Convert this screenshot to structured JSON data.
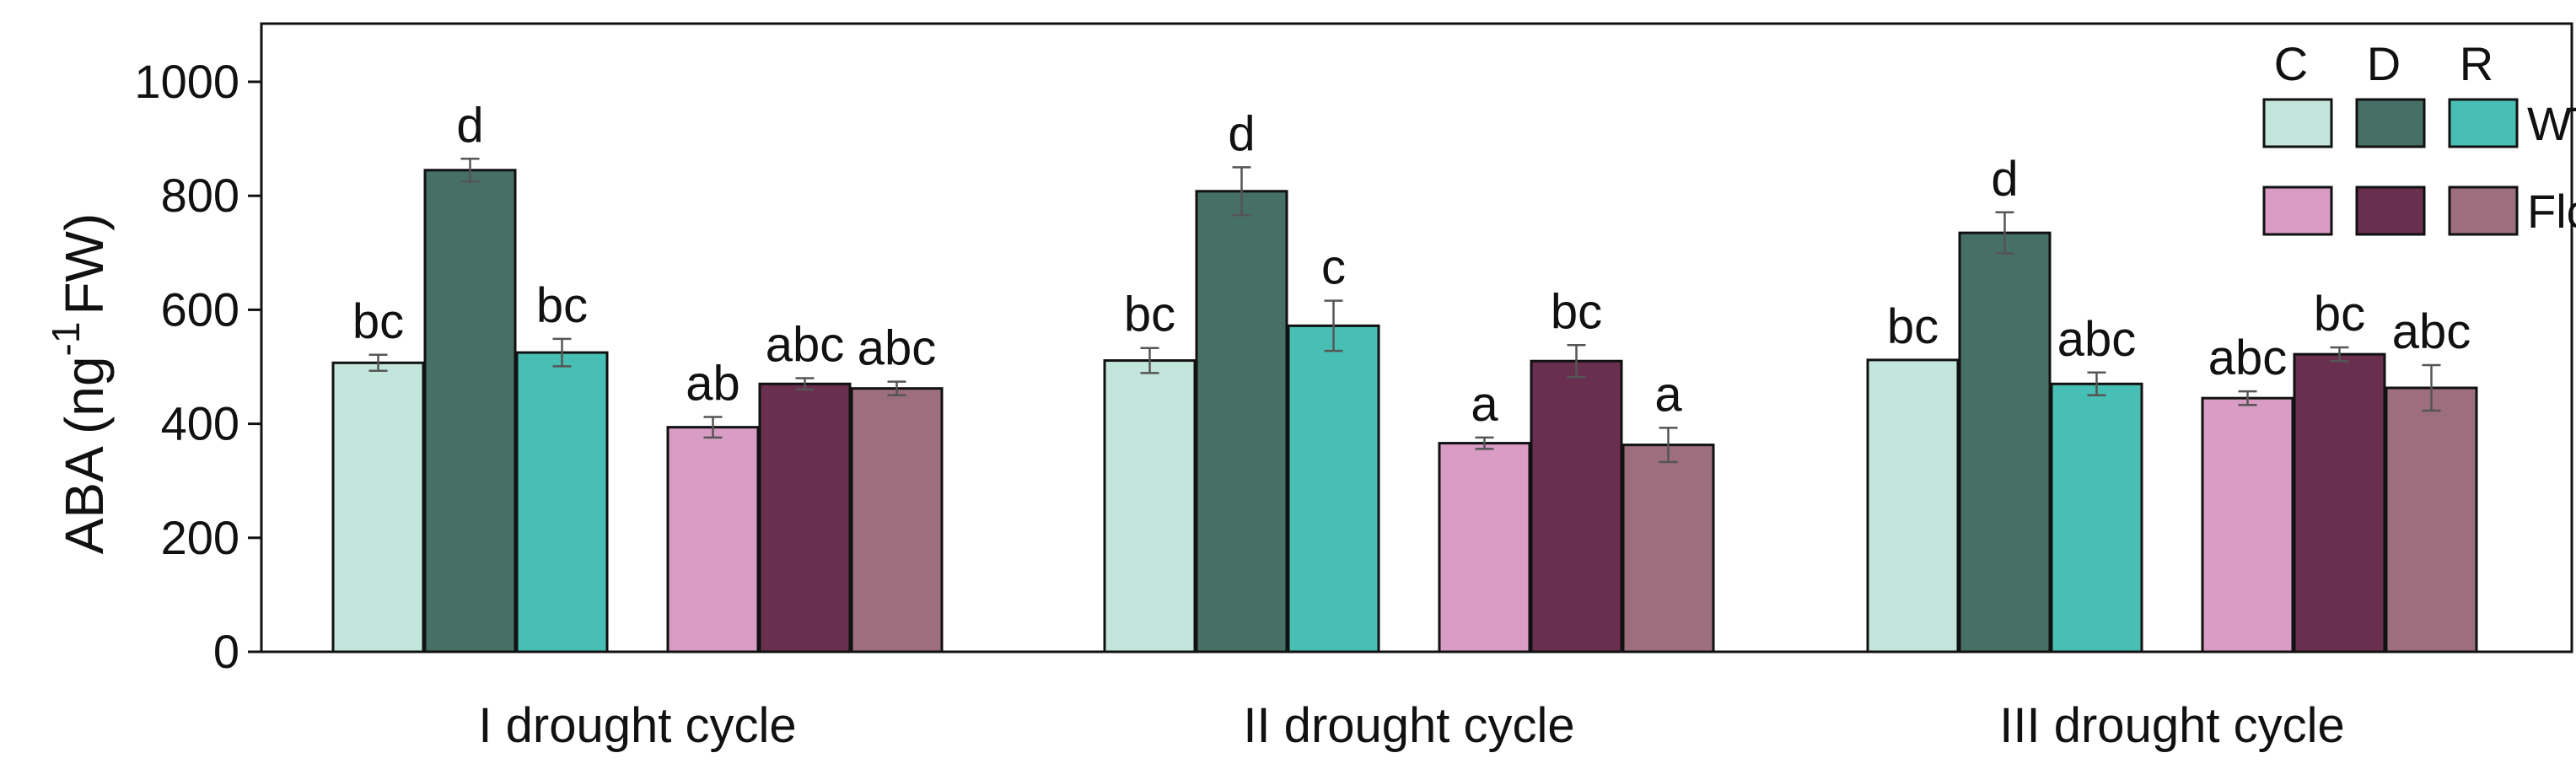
{
  "chart_data": {
    "type": "bar",
    "ylabel": {
      "main": "ABA (ng",
      "sup": "-1",
      "tail": "FW)"
    },
    "ylim": [
      0,
      1000
    ],
    "yticks": [
      0,
      200,
      400,
      600,
      800,
      1000
    ],
    "categories": [
      "I drought cycle",
      "II drought cycle",
      "III drought cycle"
    ],
    "series": [
      {
        "key": "WT-C",
        "genotype": "WT",
        "treatment": "C",
        "color": "#c2e6dc",
        "values": [
          507,
          511,
          512
        ],
        "errors": [
          14,
          22,
          0
        ],
        "letters": [
          "bc",
          "bc",
          "bc"
        ]
      },
      {
        "key": "WT-D",
        "genotype": "WT",
        "treatment": "D",
        "color": "#466f66",
        "values": [
          845,
          808,
          735
        ],
        "errors": [
          20,
          42,
          36
        ],
        "letters": [
          "d",
          "d",
          "d"
        ]
      },
      {
        "key": "WT-R",
        "genotype": "WT",
        "treatment": "R",
        "color": "#48bfb4",
        "values": [
          525,
          572,
          470
        ],
        "errors": [
          24,
          44,
          20
        ],
        "letters": [
          "bc",
          "c",
          "abc"
        ]
      },
      {
        "key": "Flc-C",
        "genotype": "Flc",
        "treatment": "C",
        "color": "#d99cc4",
        "values": [
          394,
          366,
          445
        ],
        "errors": [
          18,
          10,
          12
        ],
        "letters": [
          "ab",
          "a",
          "abc"
        ]
      },
      {
        "key": "Flc-D",
        "genotype": "Flc",
        "treatment": "D",
        "color": "#692f4f",
        "values": [
          470,
          510,
          522
        ],
        "errors": [
          10,
          28,
          12
        ],
        "letters": [
          "abc",
          "bc",
          "bc"
        ]
      },
      {
        "key": "Flc-R",
        "genotype": "Flc",
        "treatment": "R",
        "color": "#9c6e7e",
        "values": [
          462,
          363,
          463
        ],
        "errors": [
          12,
          30,
          40
        ],
        "letters": [
          "abc",
          "a",
          "abc"
        ]
      }
    ],
    "legend": {
      "placement": "top-right",
      "columns": [
        "C",
        "D",
        "R"
      ],
      "rows": [
        "WT",
        "Flc"
      ]
    }
  }
}
